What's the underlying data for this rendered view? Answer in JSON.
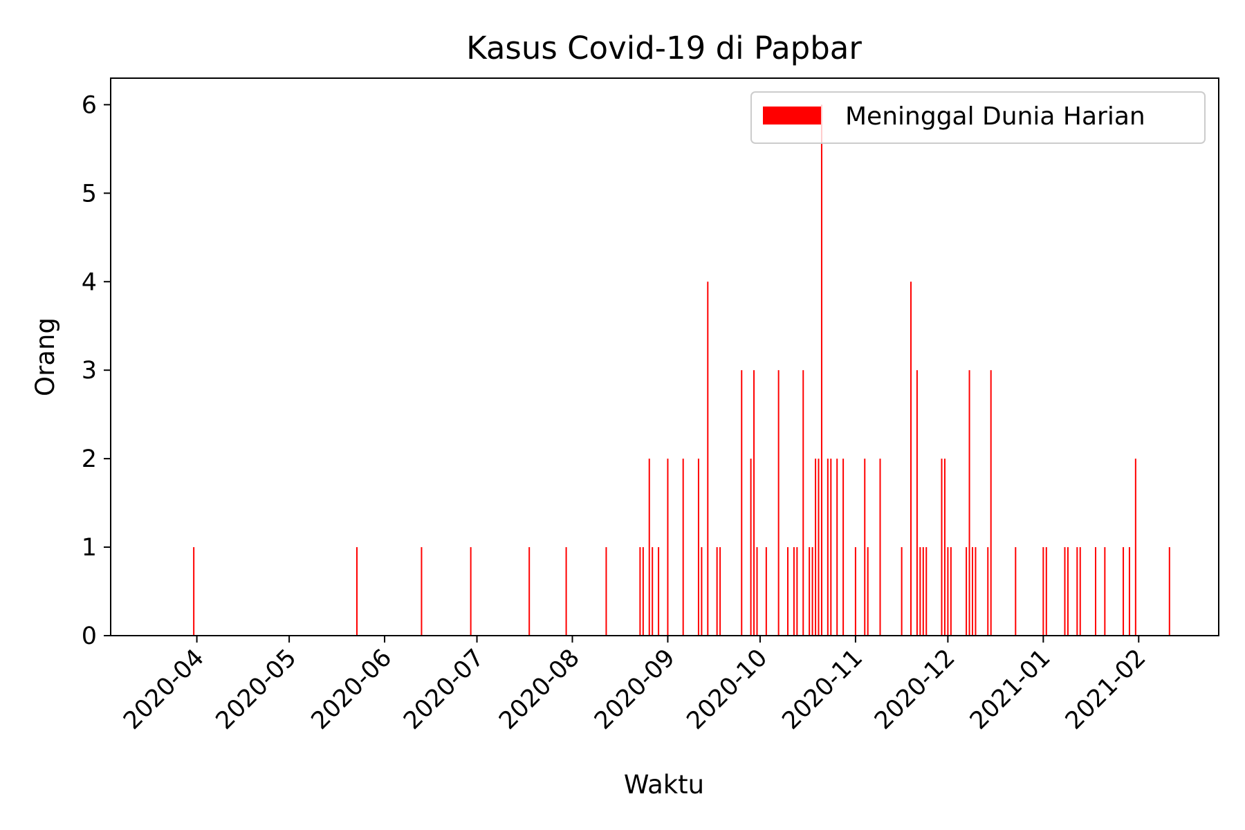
{
  "chart_data": {
    "type": "bar",
    "title": "Kasus Covid-19 di Papbar",
    "xlabel": "Waktu",
    "ylabel": "Orang",
    "colors": {
      "bar": "#ff0000",
      "axis": "#000000",
      "legend_border": "#cccccc"
    },
    "legend": {
      "position": "top-right",
      "entries": [
        "Meninggal Dunia Harian"
      ]
    },
    "grid": false,
    "xlim": [
      "2020-03-04",
      "2021-02-27"
    ],
    "ylim": [
      0,
      6.3
    ],
    "yticks": [
      0,
      1,
      2,
      3,
      4,
      5,
      6
    ],
    "xticks": [
      "2020-04-01",
      "2020-05-01",
      "2020-06-01",
      "2020-07-01",
      "2020-08-01",
      "2020-09-01",
      "2020-10-01",
      "2020-11-01",
      "2020-12-01",
      "2021-01-01",
      "2021-02-01"
    ],
    "xtick_labels": [
      "2020-04",
      "2020-05",
      "2020-06",
      "2020-07",
      "2020-08",
      "2020-09",
      "2020-10",
      "2020-11",
      "2020-12",
      "2021-01",
      "2021-02"
    ],
    "series": [
      {
        "name": "Meninggal Dunia Harian",
        "points": [
          [
            "2020-03-31",
            1
          ],
          [
            "2020-05-23",
            1
          ],
          [
            "2020-06-13",
            1
          ],
          [
            "2020-06-29",
            1
          ],
          [
            "2020-07-18",
            1
          ],
          [
            "2020-07-30",
            1
          ],
          [
            "2020-08-12",
            1
          ],
          [
            "2020-08-23",
            1
          ],
          [
            "2020-08-24",
            1
          ],
          [
            "2020-08-26",
            2
          ],
          [
            "2020-08-27",
            1
          ],
          [
            "2020-08-29",
            1
          ],
          [
            "2020-09-01",
            2
          ],
          [
            "2020-09-06",
            2
          ],
          [
            "2020-09-11",
            2
          ],
          [
            "2020-09-12",
            1
          ],
          [
            "2020-09-14",
            4
          ],
          [
            "2020-09-17",
            1
          ],
          [
            "2020-09-18",
            1
          ],
          [
            "2020-09-25",
            3
          ],
          [
            "2020-09-28",
            2
          ],
          [
            "2020-09-29",
            3
          ],
          [
            "2020-09-30",
            1
          ],
          [
            "2020-10-03",
            1
          ],
          [
            "2020-10-07",
            3
          ],
          [
            "2020-10-10",
            1
          ],
          [
            "2020-10-12",
            1
          ],
          [
            "2020-10-13",
            1
          ],
          [
            "2020-10-15",
            3
          ],
          [
            "2020-10-17",
            1
          ],
          [
            "2020-10-18",
            1
          ],
          [
            "2020-10-19",
            2
          ],
          [
            "2020-10-20",
            2
          ],
          [
            "2020-10-21",
            6
          ],
          [
            "2020-10-23",
            2
          ],
          [
            "2020-10-24",
            2
          ],
          [
            "2020-10-26",
            2
          ],
          [
            "2020-10-28",
            2
          ],
          [
            "2020-11-01",
            1
          ],
          [
            "2020-11-04",
            2
          ],
          [
            "2020-11-05",
            1
          ],
          [
            "2020-11-09",
            2
          ],
          [
            "2020-11-16",
            1
          ],
          [
            "2020-11-19",
            4
          ],
          [
            "2020-11-21",
            3
          ],
          [
            "2020-11-22",
            1
          ],
          [
            "2020-11-23",
            1
          ],
          [
            "2020-11-24",
            1
          ],
          [
            "2020-11-29",
            2
          ],
          [
            "2020-11-30",
            2
          ],
          [
            "2020-12-01",
            1
          ],
          [
            "2020-12-02",
            1
          ],
          [
            "2020-12-07",
            1
          ],
          [
            "2020-12-08",
            3
          ],
          [
            "2020-12-09",
            1
          ],
          [
            "2020-12-10",
            1
          ],
          [
            "2020-12-14",
            1
          ],
          [
            "2020-12-15",
            3
          ],
          [
            "2020-12-23",
            1
          ],
          [
            "2021-01-01",
            1
          ],
          [
            "2021-01-02",
            1
          ],
          [
            "2021-01-08",
            1
          ],
          [
            "2021-01-09",
            1
          ],
          [
            "2021-01-12",
            1
          ],
          [
            "2021-01-13",
            1
          ],
          [
            "2021-01-18",
            1
          ],
          [
            "2021-01-21",
            1
          ],
          [
            "2021-01-27",
            1
          ],
          [
            "2021-01-29",
            1
          ],
          [
            "2021-01-31",
            2
          ],
          [
            "2021-02-11",
            1
          ]
        ]
      }
    ]
  }
}
